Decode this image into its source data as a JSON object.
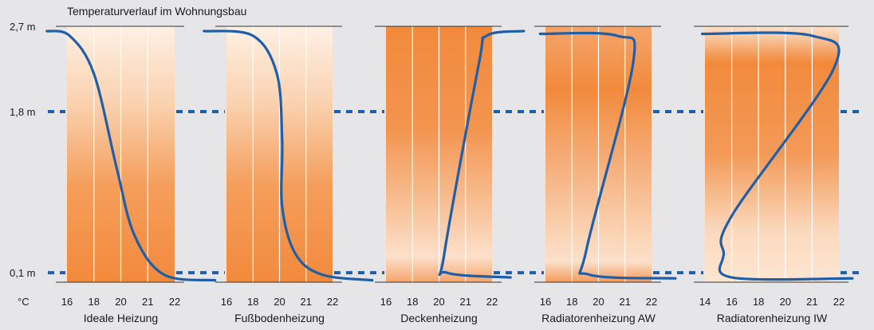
{
  "chart_data": {
    "type": "line",
    "title": "Temperaturverlauf im Wohnungsbau",
    "y_axis": {
      "unit": "m",
      "ticks": [
        {
          "value": 2.7,
          "label": "2,7 m"
        },
        {
          "value": 1.8,
          "label": "1,8 m"
        },
        {
          "value": 0.1,
          "label": "0,1 m"
        }
      ],
      "ylim": [
        0,
        2.7
      ],
      "dashed_reference_heights": [
        1.8,
        0.1
      ]
    },
    "x_unit_label": "°C",
    "colors": {
      "curve": "#1f5fa8",
      "fill_dark": "#f28a3c",
      "fill_light": "#fde6d2",
      "grid": "#ffffff"
    },
    "panels": [
      {
        "label": "Ideale Heizung",
        "x_ticks": [
          16,
          18,
          20,
          21,
          22
        ],
        "gradient": "light-top",
        "series": [
          {
            "x": 14.5,
            "y": 2.65
          },
          {
            "x": 16.2,
            "y": 2.6
          },
          {
            "x": 18,
            "y": 2.2
          },
          {
            "x": 19.7,
            "y": 1.2
          },
          {
            "x": 20.5,
            "y": 0.5
          },
          {
            "x": 21.6,
            "y": 0.08
          },
          {
            "x": 23.5,
            "y": 0.02
          }
        ]
      },
      {
        "label": "Fußbodenheizung",
        "x_ticks": [
          16,
          18,
          20,
          21,
          22
        ],
        "gradient": "light-top",
        "series": [
          {
            "x": 14.3,
            "y": 2.65
          },
          {
            "x": 18,
            "y": 2.6
          },
          {
            "x": 19.8,
            "y": 2.2
          },
          {
            "x": 20.1,
            "y": 1.5
          },
          {
            "x": 20.1,
            "y": 0.8
          },
          {
            "x": 20.6,
            "y": 0.3
          },
          {
            "x": 21.6,
            "y": 0.08
          },
          {
            "x": 23.5,
            "y": 0.02
          }
        ]
      },
      {
        "label": "Deckenheizung",
        "x_ticks": [
          16,
          18,
          20,
          21,
          22
        ],
        "gradient": "dark-top",
        "series": [
          {
            "x": 23.2,
            "y": 2.65
          },
          {
            "x": 21.8,
            "y": 2.6
          },
          {
            "x": 21.5,
            "y": 2.3
          },
          {
            "x": 20.2,
            "y": 0.3
          },
          {
            "x": 20.3,
            "y": 0.1
          },
          {
            "x": 22.7,
            "y": 0.05
          }
        ]
      },
      {
        "label": "Radiatorenheizung AW",
        "x_ticks": [
          16,
          18,
          20,
          21,
          22
        ],
        "gradient": "dark-top",
        "series": [
          {
            "x": 15.6,
            "y": 2.62
          },
          {
            "x": 20.7,
            "y": 2.6
          },
          {
            "x": 21.3,
            "y": 2.3
          },
          {
            "x": 19.1,
            "y": 0.35
          },
          {
            "x": 19.3,
            "y": 0.08
          },
          {
            "x": 22.9,
            "y": 0.04
          }
        ]
      },
      {
        "label": "Radiatorenheizung IW",
        "x_ticks": [
          14,
          16,
          18,
          20,
          21,
          22
        ],
        "gradient": "dark-top",
        "series": [
          {
            "x": 13.8,
            "y": 2.62
          },
          {
            "x": 21,
            "y": 2.6
          },
          {
            "x": 21.8,
            "y": 2.25
          },
          {
            "x": 16,
            "y": 0.7
          },
          {
            "x": 15.4,
            "y": 0.3
          },
          {
            "x": 16,
            "y": 0.05
          },
          {
            "x": 22.5,
            "y": 0.04
          }
        ]
      }
    ]
  }
}
